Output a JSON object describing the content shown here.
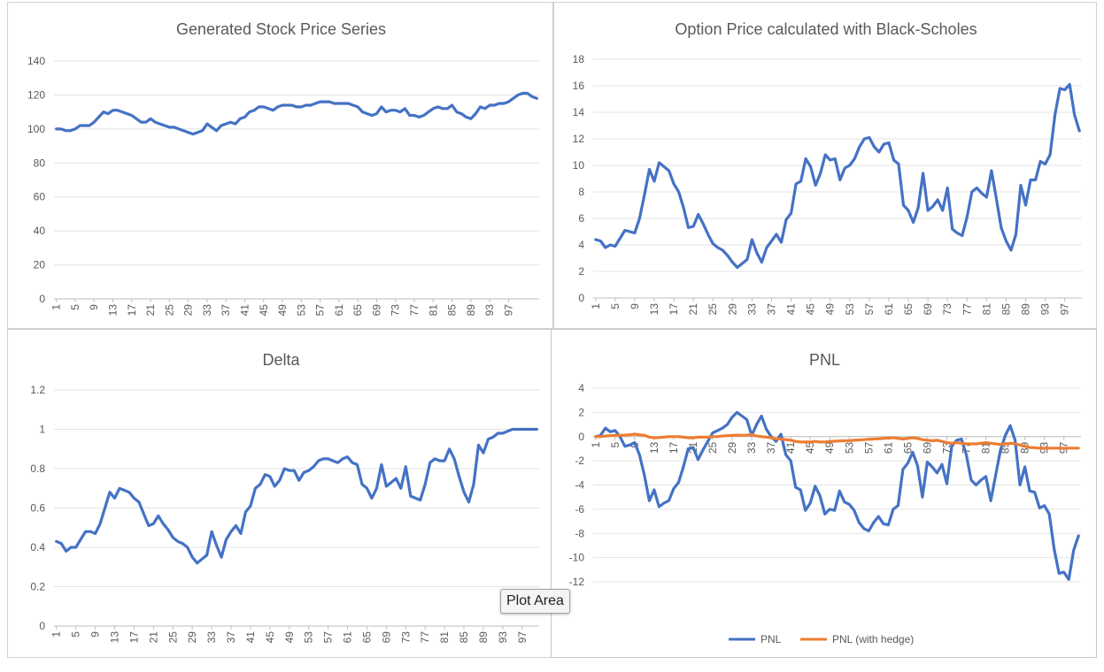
{
  "tooltip": {
    "label": "Plot Area"
  },
  "chart_data": [
    {
      "id": "stock",
      "type": "line",
      "title": "Generated Stock Price Series",
      "ylim": [
        0,
        140
      ],
      "yticks": [
        0,
        20,
        40,
        60,
        80,
        100,
        120,
        140
      ],
      "xtick_labels": [
        "1",
        "5",
        "9",
        "13",
        "17",
        "21",
        "25",
        "29",
        "33",
        "37",
        "41",
        "45",
        "49",
        "53",
        "57",
        "61",
        "65",
        "69",
        "73",
        "77",
        "81",
        "85",
        "89",
        "93",
        "97"
      ],
      "series": [
        {
          "name": "Stock Price",
          "color": "#4472c4",
          "values": [
            100,
            100,
            99,
            99,
            100,
            102,
            102,
            102,
            104,
            107,
            110,
            109,
            111,
            111,
            110,
            109,
            108,
            106,
            104,
            104,
            106,
            104,
            103,
            102,
            101,
            101,
            100,
            99,
            98,
            97,
            98,
            99,
            103,
            101,
            99,
            102,
            103,
            104,
            103,
            106,
            107,
            110,
            111,
            113,
            113,
            112,
            111,
            113,
            114,
            114,
            114,
            113,
            113,
            114,
            114,
            115,
            116,
            116,
            116,
            115,
            115,
            115,
            115,
            114,
            113,
            110,
            109,
            108,
            109,
            113,
            110,
            111,
            111,
            110,
            112,
            108,
            108,
            107,
            108,
            110,
            112,
            113,
            112,
            112,
            114,
            110,
            109,
            107,
            106,
            109,
            113,
            112,
            114,
            114,
            115,
            115,
            116,
            118,
            120,
            121,
            121,
            119,
            118
          ]
        }
      ]
    },
    {
      "id": "option",
      "type": "line",
      "title": "Option Price calculated with Black-Scholes",
      "ylim": [
        0,
        18
      ],
      "yticks": [
        0,
        2,
        4,
        6,
        8,
        10,
        12,
        14,
        16,
        18
      ],
      "xtick_labels": [
        "1",
        "5",
        "9",
        "13",
        "17",
        "21",
        "25",
        "29",
        "33",
        "37",
        "41",
        "45",
        "49",
        "53",
        "57",
        "61",
        "65",
        "69",
        "73",
        "77",
        "81",
        "85",
        "89",
        "93",
        "97"
      ],
      "series": [
        {
          "name": "Option Price",
          "color": "#4472c4",
          "values": [
            4.4,
            4.3,
            3.8,
            4,
            3.9,
            4.5,
            5.1,
            5,
            4.9,
            6,
            7.8,
            9.7,
            8.8,
            10.2,
            9.9,
            9.6,
            8.6,
            8,
            6.8,
            5.3,
            5.4,
            6.3,
            5.6,
            4.8,
            4.1,
            3.8,
            3.6,
            3.2,
            2.7,
            2.3,
            2.6,
            2.9,
            4.4,
            3.4,
            2.7,
            3.8,
            4.3,
            4.8,
            4.2,
            5.9,
            6.4,
            8.6,
            8.8,
            10.5,
            9.9,
            8.5,
            9.4,
            10.8,
            10.4,
            10.5,
            8.9,
            9.8,
            10,
            10.5,
            11.4,
            12,
            12.1,
            11.4,
            11,
            11.6,
            11.7,
            10.4,
            10.1,
            7,
            6.6,
            5.7,
            6.8,
            9.4,
            6.6,
            6.9,
            7.4,
            6.6,
            8.3,
            5.2,
            4.9,
            4.7,
            6.1,
            8,
            8.3,
            7.9,
            7.6,
            9.6,
            7.5,
            5.3,
            4.3,
            3.6,
            4.8,
            8.5,
            7,
            8.9,
            8.9,
            10.3,
            10.1,
            10.8,
            13.8,
            15.8,
            15.7,
            16.1,
            13.8,
            12.6
          ]
        }
      ]
    },
    {
      "id": "delta",
      "type": "line",
      "title": "Delta",
      "ylim": [
        0,
        1.2
      ],
      "yticks": [
        0,
        0.2,
        0.4,
        0.6,
        0.8,
        1,
        1.2
      ],
      "xtick_labels": [
        "1",
        "5",
        "9",
        "13",
        "17",
        "21",
        "25",
        "29",
        "33",
        "37",
        "41",
        "45",
        "49",
        "53",
        "57",
        "61",
        "65",
        "69",
        "73",
        "77",
        "81",
        "85",
        "89",
        "93",
        "97"
      ],
      "series": [
        {
          "name": "Delta",
          "color": "#4472c4",
          "values": [
            0.43,
            0.42,
            0.38,
            0.4,
            0.4,
            0.44,
            0.48,
            0.48,
            0.47,
            0.52,
            0.6,
            0.68,
            0.65,
            0.7,
            0.69,
            0.68,
            0.65,
            0.63,
            0.57,
            0.51,
            0.52,
            0.56,
            0.52,
            0.49,
            0.45,
            0.43,
            0.42,
            0.4,
            0.35,
            0.32,
            0.34,
            0.36,
            0.48,
            0.41,
            0.35,
            0.44,
            0.48,
            0.51,
            0.47,
            0.58,
            0.61,
            0.7,
            0.72,
            0.77,
            0.76,
            0.71,
            0.74,
            0.8,
            0.79,
            0.79,
            0.74,
            0.78,
            0.79,
            0.81,
            0.84,
            0.85,
            0.85,
            0.84,
            0.83,
            0.85,
            0.86,
            0.83,
            0.82,
            0.72,
            0.7,
            0.65,
            0.7,
            0.82,
            0.71,
            0.73,
            0.75,
            0.7,
            0.81,
            0.66,
            0.65,
            0.64,
            0.72,
            0.83,
            0.85,
            0.84,
            0.84,
            0.9,
            0.85,
            0.76,
            0.68,
            0.63,
            0.72,
            0.92,
            0.88,
            0.95,
            0.96,
            0.98,
            0.98,
            0.99,
            1,
            1,
            1,
            1,
            1,
            1
          ]
        }
      ]
    },
    {
      "id": "pnl",
      "type": "line",
      "title": "PNL",
      "ylim": [
        -12,
        4
      ],
      "yticks": [
        -12,
        -10,
        -8,
        -6,
        -4,
        -2,
        0,
        2,
        4
      ],
      "x_axis_at_zero": true,
      "xtick_labels": [
        "1",
        "5",
        "9",
        "13",
        "17",
        "21",
        "25",
        "29",
        "33",
        "37",
        "41",
        "45",
        "49",
        "53",
        "57",
        "61",
        "65",
        "69",
        "73",
        "77",
        "81",
        "85",
        "89",
        "93",
        "97"
      ],
      "legend": [
        "PNL",
        "PNL (with hedge)"
      ],
      "series": [
        {
          "name": "PNL",
          "color": "#4472c4",
          "values": [
            0,
            0.1,
            0.7,
            0.4,
            0.5,
            0,
            -0.8,
            -0.7,
            -0.5,
            -1.5,
            -3.2,
            -5.3,
            -4.4,
            -5.8,
            -5.5,
            -5.3,
            -4.3,
            -3.8,
            -2.5,
            -1,
            -0.9,
            -1.9,
            -1.1,
            -0.4,
            0.3,
            0.5,
            0.7,
            1,
            1.6,
            2,
            1.7,
            1.4,
            0.1,
            1,
            1.7,
            0.6,
            0,
            -0.4,
            0.2,
            -1.5,
            -2,
            -4.2,
            -4.4,
            -6.1,
            -5.5,
            -4.1,
            -4.9,
            -6.4,
            -6,
            -6.1,
            -4.5,
            -5.4,
            -5.6,
            -6.1,
            -7.1,
            -7.6,
            -7.8,
            -7.1,
            -6.6,
            -7.2,
            -7.3,
            -6,
            -5.7,
            -2.7,
            -2.2,
            -1.3,
            -2.4,
            -5,
            -2.1,
            -2.5,
            -3,
            -2.3,
            -3.9,
            -0.8,
            -0.3,
            -0.2,
            -1.5,
            -3.6,
            -4,
            -3.6,
            -3.3,
            -5.3,
            -3.2,
            -1.1,
            0.1,
            0.9,
            -0.3,
            -4,
            -2.5,
            -4.5,
            -4.6,
            -5.9,
            -5.7,
            -6.4,
            -9.3,
            -11.3,
            -11.2,
            -11.8,
            -9.4,
            -8.2
          ]
        },
        {
          "name": "PNL (with hedge)",
          "color": "#ed7d31",
          "values": [
            0,
            0,
            0.05,
            0.08,
            0.1,
            0.1,
            0.12,
            0.15,
            0.2,
            0.15,
            0.1,
            -0.05,
            -0.1,
            -0.08,
            -0.05,
            0,
            0,
            0,
            -0.05,
            -0.1,
            -0.1,
            -0.05,
            -0.05,
            -0.05,
            0,
            0,
            0.05,
            0.08,
            0.1,
            0.12,
            0.1,
            0.12,
            0.15,
            0.05,
            0,
            -0.05,
            -0.1,
            -0.2,
            -0.2,
            -0.25,
            -0.3,
            -0.4,
            -0.45,
            -0.45,
            -0.45,
            -0.4,
            -0.45,
            -0.45,
            -0.4,
            -0.38,
            -0.36,
            -0.35,
            -0.33,
            -0.3,
            -0.28,
            -0.25,
            -0.22,
            -0.2,
            -0.18,
            -0.15,
            -0.12,
            -0.1,
            -0.15,
            -0.2,
            -0.15,
            -0.1,
            -0.15,
            -0.25,
            -0.3,
            -0.35,
            -0.3,
            -0.4,
            -0.5,
            -0.55,
            -0.5,
            -0.55,
            -0.6,
            -0.6,
            -0.6,
            -0.55,
            -0.5,
            -0.55,
            -0.6,
            -0.65,
            -0.6,
            -0.55,
            -0.6,
            -0.7,
            -0.8,
            -0.9,
            -0.92,
            -0.95,
            -0.95,
            -0.95,
            -0.95,
            -0.95,
            -0.95,
            -0.95,
            -0.95,
            -0.95
          ]
        }
      ]
    }
  ]
}
